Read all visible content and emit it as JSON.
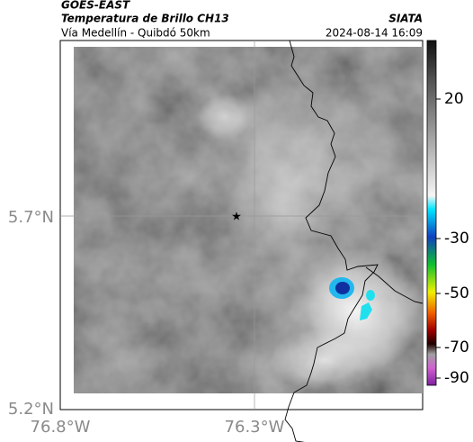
{
  "header": {
    "satellite": "GOES-EAST",
    "product": "Temperatura de Brillo CH13",
    "route": "Vía Medellín - Quibdó 50km",
    "source": "SIATA",
    "datetime": "2024-08-14 16:09"
  },
  "map": {
    "latitude_labels": [
      "5.7°N",
      "5.2°N"
    ],
    "longitude_labels": [
      "76.8°W",
      "76.3°W"
    ]
  },
  "colorbar": {
    "ticks": [
      20,
      -30,
      -50,
      -70,
      -90
    ]
  }
}
